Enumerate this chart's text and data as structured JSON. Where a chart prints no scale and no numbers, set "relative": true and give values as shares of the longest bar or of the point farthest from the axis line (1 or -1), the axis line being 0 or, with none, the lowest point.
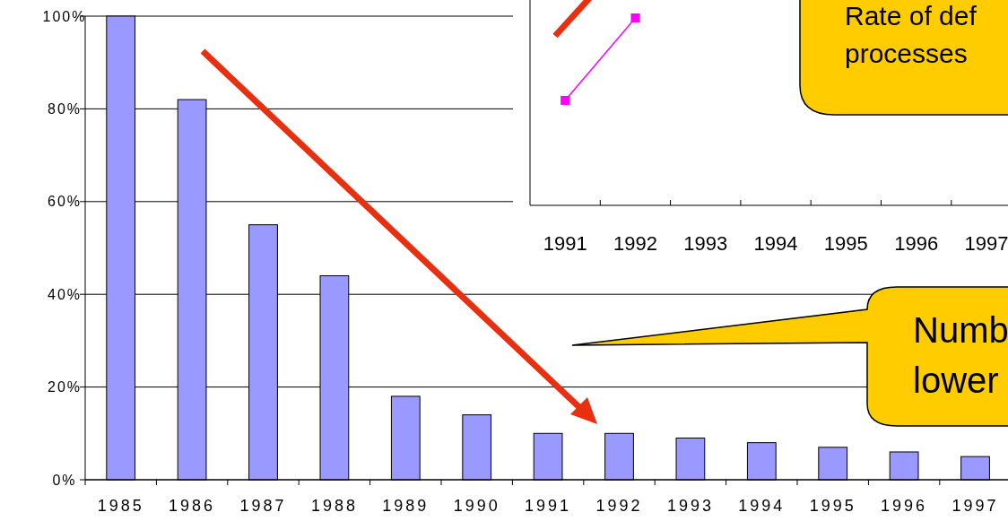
{
  "chart_data": [
    {
      "type": "bar",
      "categories": [
        "1985",
        "1986",
        "1987",
        "1988",
        "1989",
        "1990",
        "1991",
        "1992",
        "1993",
        "1994",
        "1995",
        "1996",
        "1997"
      ],
      "values": [
        100,
        82,
        55,
        44,
        18,
        14,
        10,
        10,
        9,
        8,
        7,
        6,
        5
      ],
      "color": "#9999ff",
      "ylim": [
        0,
        100
      ],
      "yticks": [
        {
          "value": 0,
          "label": "0%"
        },
        {
          "value": 20,
          "label": "20%"
        },
        {
          "value": 40,
          "label": "40%"
        },
        {
          "value": 60,
          "label": "60%"
        },
        {
          "value": 80,
          "label": "80%"
        },
        {
          "value": 100,
          "label": "100%"
        }
      ],
      "grid": "y",
      "annotations": [
        "Numb",
        "lower"
      ]
    },
    {
      "type": "line",
      "relative": true,
      "categories": [
        "1991",
        "1992",
        "1993",
        "1994",
        "1995",
        "1996",
        "1997"
      ],
      "series": [
        {
          "color": "#ff00ff",
          "values": [
            0.56,
            1,
            null,
            null,
            null,
            null,
            null
          ]
        }
      ],
      "marker": "square",
      "annotations": [
        "Rate of def",
        "processes"
      ]
    }
  ]
}
